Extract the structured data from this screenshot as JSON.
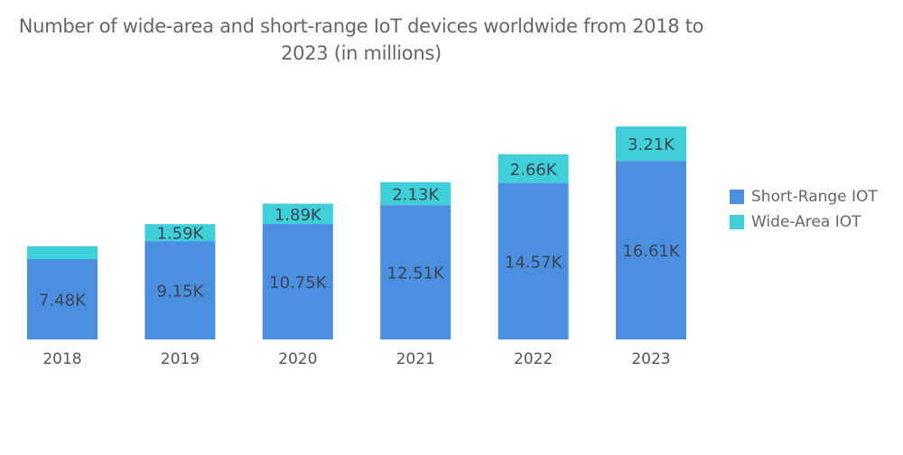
{
  "chart_data": {
    "type": "bar",
    "stacked": true,
    "title": "Number of wide-area and short-range IoT devices worldwide from 2018 to 2023 (in millions)",
    "xlabel": "",
    "ylabel": "",
    "categories": [
      "2018",
      "2019",
      "2020",
      "2021",
      "2022",
      "2023"
    ],
    "series": [
      {
        "name": "Short-Range IOT",
        "color": "#4a8fe0",
        "values": [
          7.48,
          9.15,
          10.75,
          12.51,
          14.57,
          16.61
        ],
        "labels": [
          "7.48K",
          "9.15K",
          "10.75K",
          "12.51K",
          "14.57K",
          "16.61K"
        ]
      },
      {
        "name": "Wide-Area IOT",
        "color": "#3ecfd8",
        "values": [
          1.2,
          1.59,
          1.89,
          2.13,
          2.66,
          3.21
        ],
        "labels": [
          "",
          "1.59K",
          "1.89K",
          "2.13K",
          "2.66K",
          "3.21K"
        ]
      }
    ],
    "ylim": [
      0,
      20
    ],
    "grid": false,
    "yaxis_visible": false,
    "legend_position": "right"
  },
  "title_lines": [
    "Number of wide-area and short-range IoT devices worldwide from 2018 to",
    "2023 (in millions)"
  ]
}
